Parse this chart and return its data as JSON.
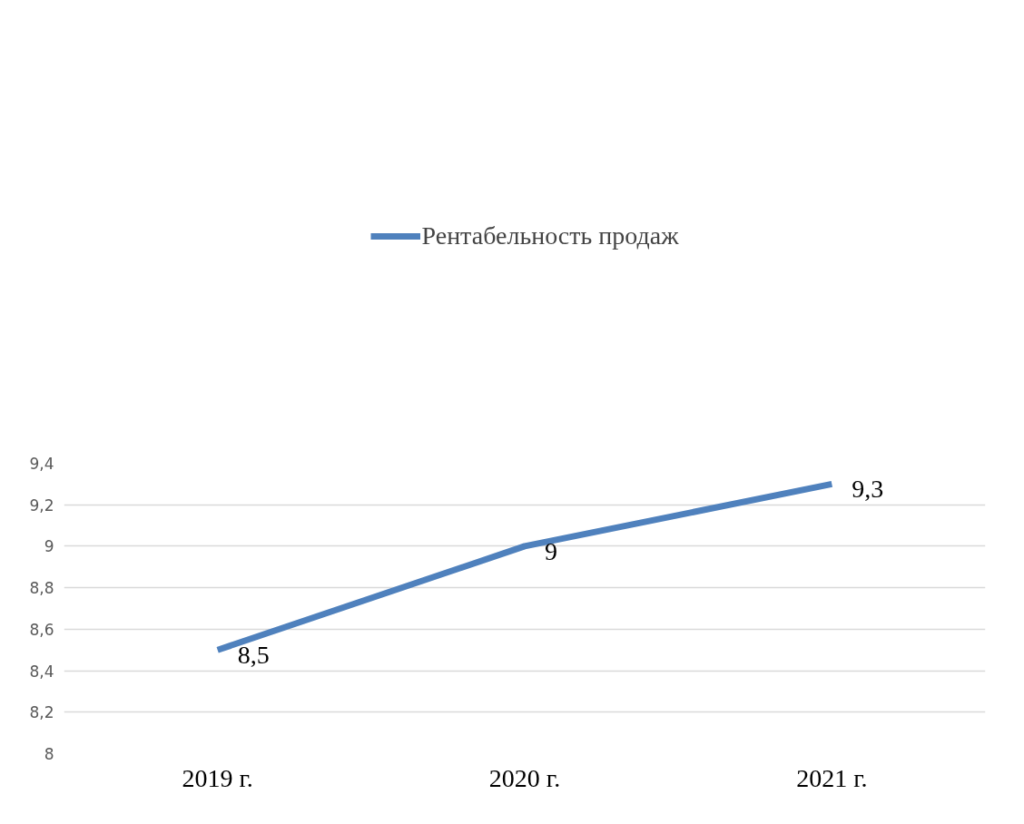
{
  "chart_data": {
    "type": "line",
    "categories": [
      "2019 г.",
      "2020 г.",
      "2021 г."
    ],
    "series": [
      {
        "name": "Рентабельность продаж",
        "color": "#4f81bd",
        "values": [
          8.5,
          9,
          9.3
        ],
        "value_labels": [
          "8,5",
          "9",
          "9,3"
        ]
      }
    ],
    "ylim": [
      8,
      9.4
    ],
    "yticks": [
      {
        "value": 8,
        "label": "8"
      },
      {
        "value": 8.2,
        "label": "8,2"
      },
      {
        "value": 8.4,
        "label": "8,4"
      },
      {
        "value": 8.6,
        "label": "8,6"
      },
      {
        "value": 8.8,
        "label": "8,8"
      },
      {
        "value": 9,
        "label": "9"
      },
      {
        "value": 9.2,
        "label": "9,2"
      },
      {
        "value": 9.4,
        "label": "9,4"
      }
    ],
    "grid": "y",
    "legend": "top",
    "marker": "none",
    "line_style": "solid"
  }
}
